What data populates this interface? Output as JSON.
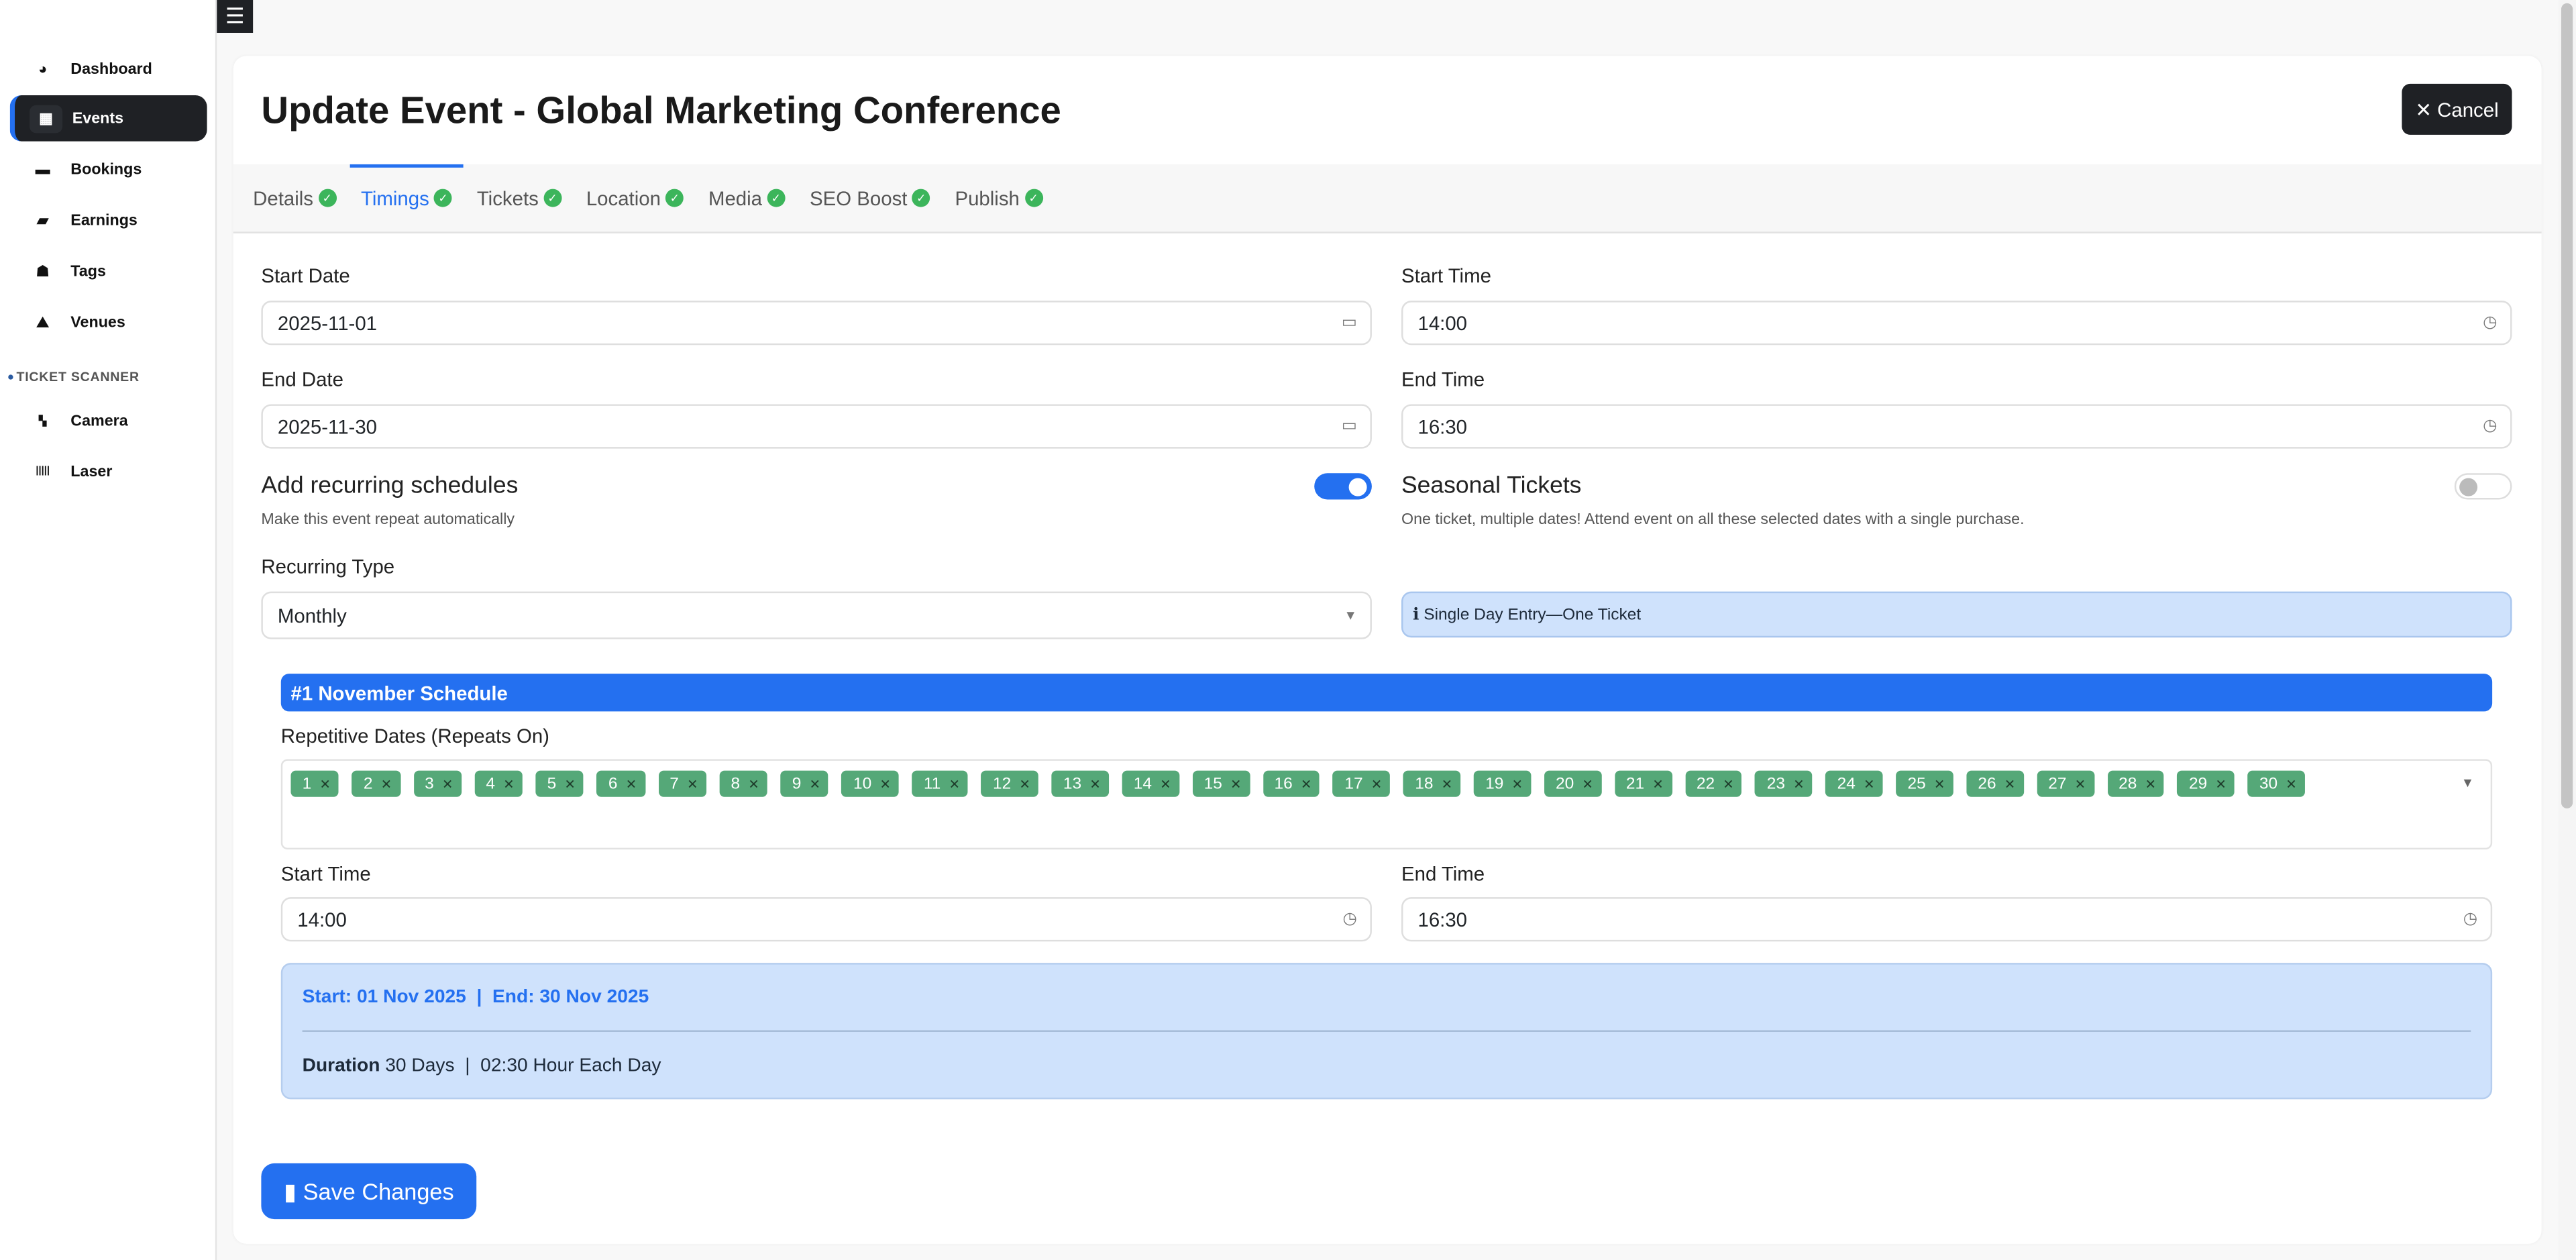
{
  "sidebar": {
    "items": [
      {
        "label": "Dashboard",
        "icon": "gauge-icon",
        "glyph": "◕"
      },
      {
        "label": "Events",
        "icon": "calendar-icon",
        "glyph": "▦",
        "active": true
      },
      {
        "label": "Bookings",
        "icon": "money-bill-icon",
        "glyph": "▬"
      },
      {
        "label": "Earnings",
        "icon": "wallet-icon",
        "glyph": "▰"
      },
      {
        "label": "Tags",
        "icon": "user-tag-icon",
        "glyph": "☗"
      },
      {
        "label": "Venues",
        "icon": "map-icon",
        "glyph": "⛰"
      }
    ],
    "section": "TICKET SCANNER",
    "scanner_items": [
      {
        "label": "Camera",
        "icon": "qrcode-icon",
        "glyph": "▚"
      },
      {
        "label": "Laser",
        "icon": "barcode-icon",
        "glyph": "|||||"
      }
    ]
  },
  "header": {
    "menu_icon": "☰",
    "title": "Update Event - Global Marketing Conference",
    "cancel": "✕ Cancel"
  },
  "tabs": [
    {
      "label": "Details"
    },
    {
      "label": "Timings",
      "active": true
    },
    {
      "label": "Tickets"
    },
    {
      "label": "Location"
    },
    {
      "label": "Media"
    },
    {
      "label": "SEO Boost"
    },
    {
      "label": "Publish"
    }
  ],
  "form": {
    "start_date_label": "Start Date",
    "start_date": "2025-11-01",
    "start_time_label": "Start Time",
    "start_time": "14:00",
    "end_date_label": "End Date",
    "end_date": "2025-11-30",
    "end_time_label": "End Time",
    "end_time": "16:30",
    "recurring_title": "Add recurring schedules",
    "recurring_sub": "Make this event repeat automatically",
    "recurring_on": true,
    "seasonal_title": "Seasonal Tickets",
    "seasonal_sub": "One ticket, multiple dates! Attend event on all these selected dates with a single purchase.",
    "seasonal_on": false,
    "recurring_type_label": "Recurring Type",
    "recurring_type": "Monthly",
    "info": "ℹ Single Day Entry—One Ticket"
  },
  "schedule": {
    "title": "#1  November Schedule",
    "dates_label": "Repetitive Dates (Repeats On)",
    "dates": [
      "1",
      "2",
      "3",
      "4",
      "5",
      "6",
      "7",
      "8",
      "9",
      "10",
      "11",
      "12",
      "13",
      "14",
      "15",
      "16",
      "17",
      "18",
      "19",
      "20",
      "21",
      "22",
      "23",
      "24",
      "25",
      "26",
      "27",
      "28",
      "29",
      "30"
    ],
    "start_time_label": "Start Time",
    "start_time": "14:00",
    "end_time_label": "End Time",
    "end_time": "16:30",
    "summary_range": "Start: 01 Nov 2025  |  End: 30 Nov 2025",
    "duration_label": "Duration",
    "duration_text": " 30 Days  |  02:30 Hour Each Day"
  },
  "save": "Save Changes",
  "colors": {
    "primary": "#2470f0",
    "success": "#3cb55b",
    "chip": "#55a878",
    "dark": "#1f2125"
  }
}
